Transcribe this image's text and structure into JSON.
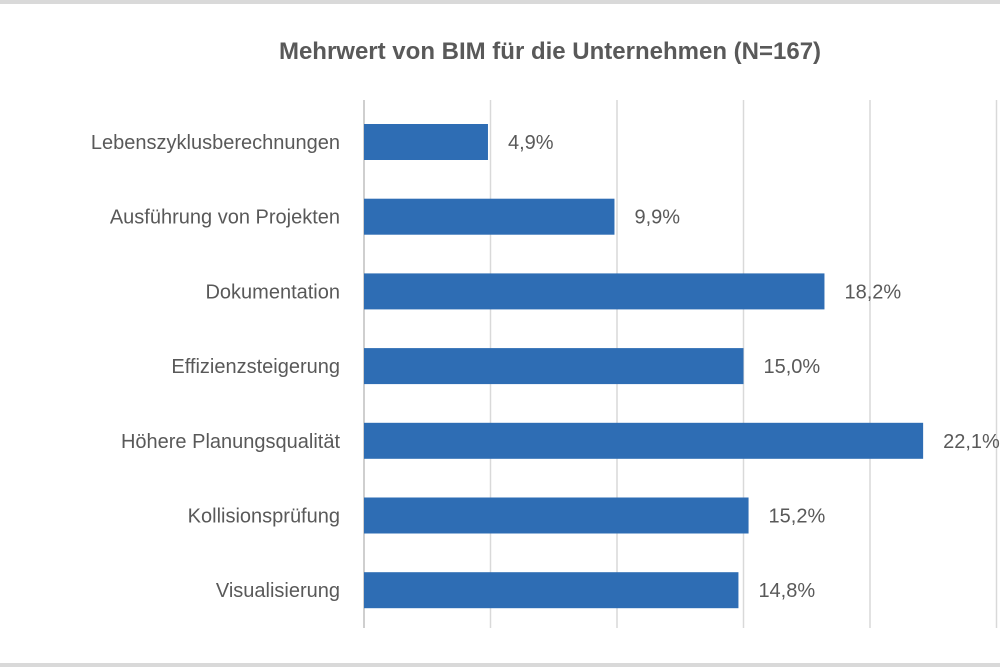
{
  "chart_data": {
    "type": "bar",
    "orientation": "horizontal",
    "title": "Mehrwert von BIM für die Unternehmen (N=167)",
    "categories": [
      "Lebenszyklusberechnungen",
      "Ausführung von Projekten",
      "Dokumentation",
      "Effizienzsteigerung",
      "Höhere Planungsqualität",
      "Kollisionsprüfung",
      "Visualisierung"
    ],
    "values": [
      4.9,
      9.9,
      18.2,
      15.0,
      22.1,
      15.2,
      14.8
    ],
    "value_labels": [
      "4,9%",
      "9,9%",
      "18,2%",
      "15,0%",
      "22,1%",
      "15,2%",
      "14,8%"
    ],
    "xlim": [
      0,
      25
    ],
    "grid": true,
    "bar_color": "#2e6db4"
  }
}
